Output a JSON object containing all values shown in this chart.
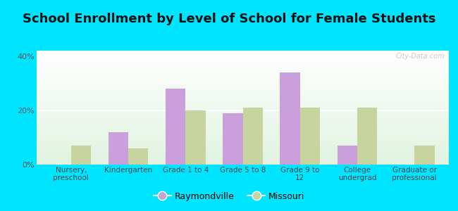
{
  "title": "School Enrollment by Level of School for Female Students",
  "categories": [
    "Nursery,\npreschool",
    "Kindergarten",
    "Grade 1 to 4",
    "Grade 5 to 8",
    "Grade 9 to\n12",
    "College\nundergrad",
    "Graduate or\nprofessional"
  ],
  "raymondville": [
    0,
    12,
    28,
    19,
    34,
    7,
    0
  ],
  "missouri": [
    7,
    6,
    20,
    21,
    21,
    21,
    7
  ],
  "bar_color_raymondville": "#c9a0dc",
  "bar_color_missouri": "#c8d4a0",
  "background_color": "#00e5ff",
  "ylabel_ticks": [
    "0%",
    "20%",
    "40%"
  ],
  "yticks": [
    0,
    20,
    40
  ],
  "ylim": [
    0,
    42
  ],
  "title_fontsize": 13,
  "legend_labels": [
    "Raymondville",
    "Missouri"
  ],
  "watermark": "City-Data.com"
}
